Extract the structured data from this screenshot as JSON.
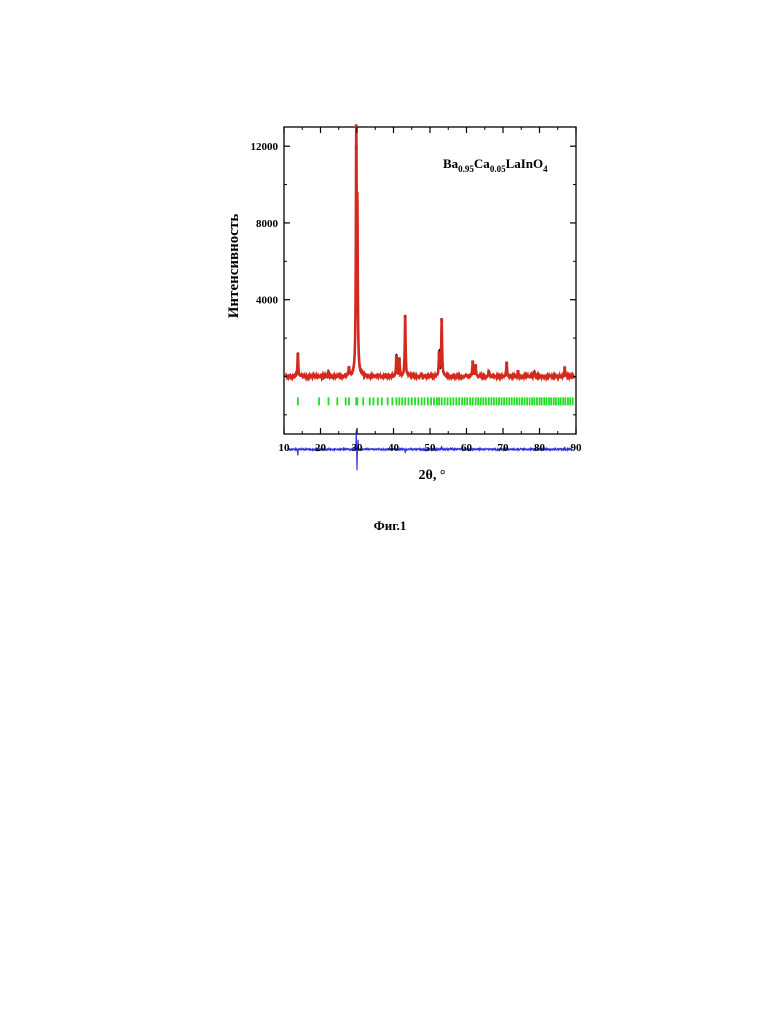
{
  "chart_data": {
    "type": "line",
    "formula": {
      "parts": [
        {
          "text": "Ba",
          "sub": false
        },
        {
          "text": "0.95",
          "sub": true
        },
        {
          "text": "Ca",
          "sub": false
        },
        {
          "text": "0.05",
          "sub": true
        },
        {
          "text": "LaInO",
          "sub": false
        },
        {
          "text": "4",
          "sub": true
        }
      ]
    },
    "xlabel": "2θ, °",
    "ylabel": "Интенсивность",
    "xlim": [
      10,
      90
    ],
    "ylim": [
      -3000,
      13000
    ],
    "xticks": [
      10,
      20,
      30,
      40,
      50,
      60,
      70,
      80,
      90
    ],
    "xtick_labels": [
      "10",
      "20",
      "30",
      "40",
      "50",
      "60",
      "70",
      "80",
      "90"
    ],
    "yticks": [
      4000,
      8000,
      12000
    ],
    "ytick_labels": [
      "4000",
      "8000",
      "12000"
    ],
    "grid": false,
    "legend": false,
    "baseline": 0,
    "series": [
      {
        "color": "#d42a1e",
        "description": "observed",
        "points": [
          [
            13.8,
            1150
          ],
          [
            22.2,
            230
          ],
          [
            27.8,
            450
          ],
          [
            29.8,
            11900
          ],
          [
            30.1,
            7700
          ],
          [
            40.8,
            1050
          ],
          [
            41.6,
            900
          ],
          [
            43.2,
            3100
          ],
          [
            52.5,
            1200
          ],
          [
            53.2,
            2950
          ],
          [
            61.7,
            750
          ],
          [
            62.5,
            550
          ],
          [
            66.1,
            250
          ],
          [
            71.0,
            700
          ],
          [
            74.1,
            250
          ],
          [
            78.6,
            220
          ],
          [
            86.9,
            450
          ]
        ]
      },
      {
        "color": "#000000",
        "description": "calculated",
        "points": [
          [
            13.8,
            1250
          ],
          [
            22.2,
            250
          ],
          [
            27.8,
            480
          ],
          [
            29.8,
            10600
          ],
          [
            30.1,
            7200
          ],
          [
            40.8,
            1150
          ],
          [
            41.6,
            950
          ],
          [
            43.2,
            3200
          ],
          [
            52.5,
            1300
          ],
          [
            53.2,
            3000
          ],
          [
            61.7,
            800
          ],
          [
            62.5,
            600
          ],
          [
            66.1,
            300
          ],
          [
            71.0,
            750
          ],
          [
            74.1,
            300
          ],
          [
            78.6,
            250
          ],
          [
            86.9,
            450
          ]
        ]
      },
      {
        "color": "#3333dd",
        "description": "difference",
        "offset": -3800,
        "points": [
          [
            13.8,
            -300
          ],
          [
            29.8,
            1000
          ],
          [
            30.0,
            -1100
          ],
          [
            30.3,
            500
          ],
          [
            43.2,
            -200
          ],
          [
            53.2,
            150
          ],
          [
            86.9,
            100
          ]
        ]
      }
    ],
    "reflections": {
      "color": "#22dd22",
      "level": -1300,
      "positions": [
        13.8,
        19.6,
        22.2,
        24.6,
        26.9,
        27.8,
        29.8,
        30.1,
        31.7,
        33.5,
        34.5,
        35.7,
        36.8,
        38.4,
        39.7,
        40.8,
        41.6,
        42.4,
        43.2,
        44.1,
        45.0,
        45.9,
        46.8,
        47.7,
        48.5,
        49.4,
        50.3,
        51.1,
        51.9,
        52.5,
        53.2,
        54.0,
        54.8,
        55.6,
        56.4,
        57.2,
        58.0,
        58.8,
        59.5,
        60.2,
        61.0,
        61.7,
        62.5,
        63.2,
        63.9,
        64.6,
        65.3,
        66.1,
        66.8,
        67.5,
        68.2,
        68.9,
        69.6,
        70.3,
        71.0,
        71.7,
        72.4,
        73.1,
        73.8,
        74.5,
        75.2,
        75.9,
        76.6,
        77.3,
        78.0,
        78.6,
        79.3,
        80.0,
        80.6,
        81.3,
        81.9,
        82.6,
        83.2,
        83.9,
        84.5,
        85.2,
        85.8,
        86.5,
        87.1,
        87.8,
        88.4,
        89.1
      ]
    }
  },
  "figure": {
    "caption": "Фиг.1"
  }
}
